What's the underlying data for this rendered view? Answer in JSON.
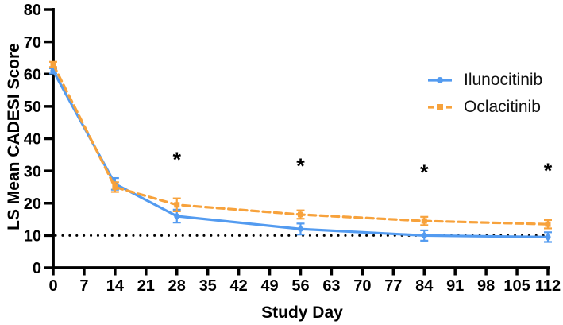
{
  "chart_data": {
    "type": "line",
    "title": "",
    "xlabel": "Study Day",
    "ylabel": "LS Mean CADESI Score",
    "xlim": [
      0,
      112
    ],
    "ylim": [
      0,
      80
    ],
    "xticks": [
      0,
      7,
      14,
      21,
      28,
      35,
      42,
      49,
      56,
      63,
      70,
      77,
      84,
      91,
      98,
      105,
      112
    ],
    "yticks": [
      0,
      10,
      20,
      30,
      40,
      50,
      60,
      70,
      80
    ],
    "grid": false,
    "legend_position": "upper-right-inside",
    "axis_color": "#000000",
    "x": [
      0,
      14,
      28,
      56,
      84,
      112
    ],
    "series": [
      {
        "name": "Ilunocitinib",
        "color": "#539BF0",
        "line_style": "solid",
        "marker": "circle",
        "values": [
          61,
          26,
          16,
          12,
          10,
          9.5
        ],
        "errors": [
          0.8,
          1.8,
          2.0,
          1.7,
          1.6,
          1.5
        ]
      },
      {
        "name": "Oclacitinib",
        "color": "#F7A23C",
        "line_style": "dashed",
        "marker": "square",
        "values": [
          63,
          25,
          19.5,
          16.5,
          14.5,
          13.5
        ],
        "errors": [
          0.8,
          1.5,
          2.0,
          1.3,
          1.3,
          1.3
        ]
      }
    ],
    "reference_line": {
      "value": 10,
      "style": "dotted",
      "color": "#000000"
    },
    "annotations": [
      {
        "symbol": "*",
        "day": 28,
        "value": 34.5
      },
      {
        "symbol": "*",
        "day": 56,
        "value": 32.5
      },
      {
        "symbol": "*",
        "day": 84,
        "value": 30.5
      },
      {
        "symbol": "*",
        "day": 112,
        "value": 31
      }
    ]
  }
}
